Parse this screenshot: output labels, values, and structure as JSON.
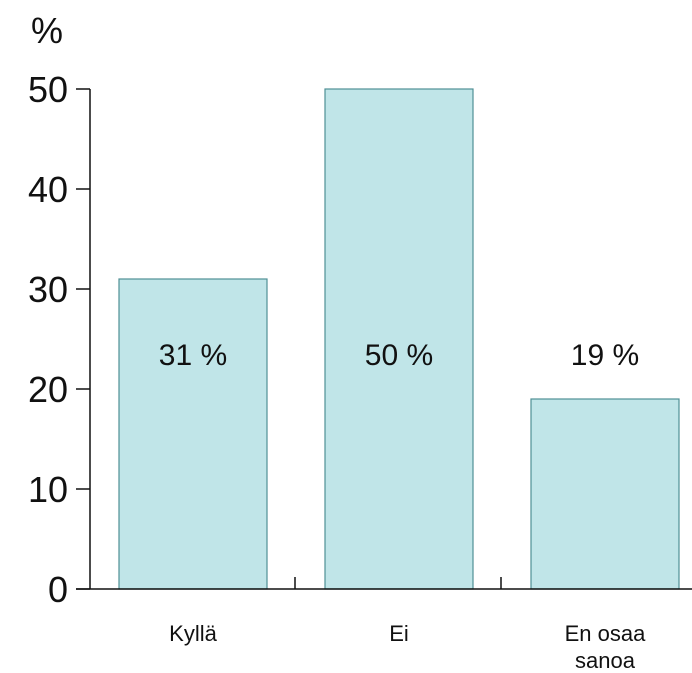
{
  "chart_data": {
    "type": "bar",
    "ylabel": "%",
    "ylim": [
      0,
      50
    ],
    "yticks": [
      "0",
      "10",
      "20",
      "30",
      "40",
      "50"
    ],
    "categories": [
      [
        "Kyllä"
      ],
      [
        "Ei"
      ],
      [
        "En osaa",
        "sanoa"
      ]
    ],
    "values": [
      31,
      50,
      19
    ],
    "data_labels": [
      "31 %",
      "50 %",
      "19 %"
    ],
    "grid": false,
    "bar_color": "#c0e5e8",
    "bar_edge_color": "#4f8f95"
  }
}
